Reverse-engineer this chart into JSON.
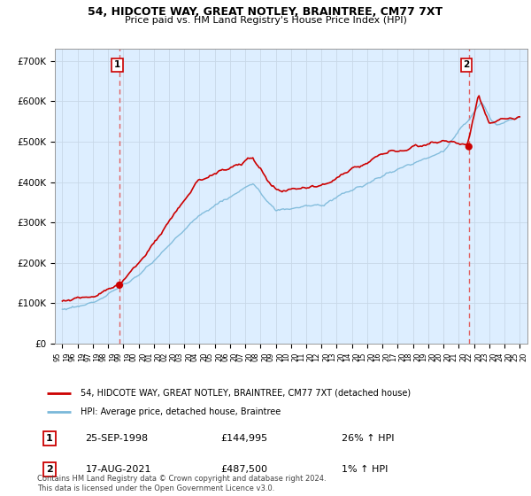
{
  "title": "54, HIDCOTE WAY, GREAT NOTLEY, BRAINTREE, CM77 7XT",
  "subtitle": "Price paid vs. HM Land Registry's House Price Index (HPI)",
  "sale1_date": "25-SEP-1998",
  "sale1_price": 144995,
  "sale1_hpi": "26% ↑ HPI",
  "sale2_date": "17-AUG-2021",
  "sale2_price": 487500,
  "sale2_hpi": "1% ↑ HPI",
  "legend_label1": "54, HIDCOTE WAY, GREAT NOTLEY, BRAINTREE, CM77 7XT (detached house)",
  "legend_label2": "HPI: Average price, detached house, Braintree",
  "copyright": "Contains HM Land Registry data © Crown copyright and database right 2024.\nThis data is licensed under the Open Government Licence v3.0.",
  "hpi_color": "#7ab8d9",
  "price_color": "#cc0000",
  "vline_color": "#e06060",
  "chart_bg": "#ddeeff",
  "ylim_min": 0,
  "ylim_max": 730000,
  "yticks": [
    0,
    100000,
    200000,
    300000,
    400000,
    500000,
    600000,
    700000
  ],
  "ytick_labels": [
    "£0",
    "£100K",
    "£200K",
    "£300K",
    "£400K",
    "£500K",
    "£600K",
    "£700K"
  ],
  "xlim_min": 1994.5,
  "xlim_max": 2025.5,
  "background_color": "#ffffff",
  "grid_color": "#c8d8e8"
}
